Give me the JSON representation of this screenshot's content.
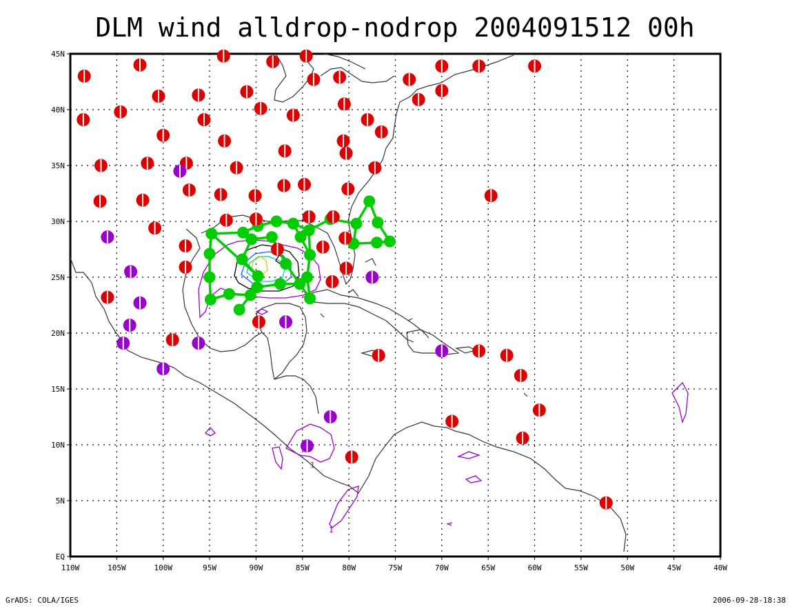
{
  "title": "DLM wind alldrop-nodrop 2004091512 00h",
  "footer": {
    "left": "GrADS: COLA/IGES",
    "right": "2006-09-28-18:38"
  },
  "colors": {
    "frame": "#000000",
    "coast": "#333333",
    "grid": "#000000",
    "track": "#00cc00",
    "obs_red": "#dd0000",
    "obs_purple": "#9900cc",
    "contour_purple": "#9900cc",
    "contour_blue": "#0066ff",
    "contour_cyan": "#00cccc",
    "contour_yellow": "#ddcc00",
    "contour_black": "#000000"
  },
  "chart_data": {
    "type": "map",
    "title": "DLM wind alldrop-nodrop 2004091512 00h",
    "lon_range": [
      -110,
      -40
    ],
    "lat_range": [
      0,
      45
    ],
    "x_ticks": [
      "110W",
      "105W",
      "100W",
      "95W",
      "90W",
      "85W",
      "80W",
      "75W",
      "70W",
      "65W",
      "60W",
      "55W",
      "50W",
      "45W",
      "40W"
    ],
    "y_ticks": [
      "EQ",
      "5N",
      "10N",
      "15N",
      "20N",
      "25N",
      "30N",
      "35N",
      "40N",
      "45N"
    ],
    "gridlines": true,
    "contour_label": "1",
    "observations_red": [
      [
        -108.5,
        43.0
      ],
      [
        -102.5,
        44.0
      ],
      [
        -93.5,
        44.8
      ],
      [
        -88.2,
        44.3
      ],
      [
        -84.6,
        44.8
      ],
      [
        -83.8,
        42.7
      ],
      [
        -81.0,
        42.9
      ],
      [
        -73.5,
        42.7
      ],
      [
        -70.0,
        43.9
      ],
      [
        -66.0,
        43.9
      ],
      [
        -60.0,
        43.9
      ],
      [
        -100.5,
        41.2
      ],
      [
        -96.2,
        41.3
      ],
      [
        -91.0,
        41.6
      ],
      [
        -80.5,
        40.5
      ],
      [
        -89.5,
        40.1
      ],
      [
        -72.5,
        40.9
      ],
      [
        -70.0,
        41.7
      ],
      [
        -108.6,
        39.1
      ],
      [
        -104.6,
        39.8
      ],
      [
        -95.6,
        39.1
      ],
      [
        -86.0,
        39.5
      ],
      [
        -78.0,
        39.1
      ],
      [
        -76.5,
        38.0
      ],
      [
        -100.0,
        37.7
      ],
      [
        -93.4,
        37.2
      ],
      [
        -80.6,
        37.2
      ],
      [
        -80.3,
        36.1
      ],
      [
        -86.9,
        36.3
      ],
      [
        -106.7,
        35.0
      ],
      [
        -101.7,
        35.2
      ],
      [
        -97.5,
        35.2
      ],
      [
        -92.1,
        34.8
      ],
      [
        -77.2,
        34.8
      ],
      [
        -97.2,
        32.8
      ],
      [
        -93.8,
        32.4
      ],
      [
        -90.1,
        32.3
      ],
      [
        -87.0,
        33.2
      ],
      [
        -84.8,
        33.3
      ],
      [
        -80.1,
        32.9
      ],
      [
        -64.7,
        32.3
      ],
      [
        -106.8,
        31.8
      ],
      [
        -102.2,
        31.9
      ],
      [
        -100.9,
        29.4
      ],
      [
        -93.2,
        30.1
      ],
      [
        -90.0,
        30.2
      ],
      [
        -84.3,
        30.4
      ],
      [
        -81.7,
        30.4
      ],
      [
        -80.4,
        28.5
      ],
      [
        -82.8,
        27.7
      ],
      [
        -97.6,
        27.8
      ],
      [
        -97.6,
        25.9
      ],
      [
        -87.7,
        27.5
      ],
      [
        -80.3,
        25.8
      ],
      [
        -81.8,
        24.6
      ],
      [
        -106.0,
        23.2
      ],
      [
        -89.7,
        21.0
      ],
      [
        -99.0,
        19.4
      ],
      [
        -76.8,
        18.0
      ],
      [
        -66.0,
        18.4
      ],
      [
        -63.0,
        18.0
      ],
      [
        -61.5,
        16.2
      ],
      [
        -59.5,
        13.1
      ],
      [
        -68.9,
        12.1
      ],
      [
        -61.3,
        10.6
      ],
      [
        -79.7,
        8.9
      ],
      [
        -52.3,
        4.8
      ]
    ],
    "observations_purple": [
      [
        -98.2,
        34.5
      ],
      [
        -106.0,
        28.6
      ],
      [
        -103.5,
        25.5
      ],
      [
        -102.5,
        22.7
      ],
      [
        -103.6,
        20.7
      ],
      [
        -104.3,
        19.1
      ],
      [
        -96.2,
        19.1
      ],
      [
        -100.0,
        16.8
      ],
      [
        -86.8,
        21.0
      ],
      [
        -77.5,
        25.0
      ],
      [
        -70.0,
        18.4
      ],
      [
        -82.0,
        12.5
      ],
      [
        -84.5,
        9.9
      ]
    ],
    "track_points": [
      [
        -77.8,
        31.8
      ],
      [
        -76.9,
        29.9
      ],
      [
        -75.6,
        28.2
      ],
      [
        -77.0,
        28.1
      ],
      [
        -79.5,
        28.0
      ],
      [
        -79.2,
        29.8
      ],
      [
        -82.0,
        30.2
      ],
      [
        -84.3,
        29.2
      ],
      [
        -86.0,
        29.8
      ],
      [
        -87.8,
        30.0
      ],
      [
        -89.8,
        29.6
      ],
      [
        -91.4,
        29.0
      ],
      [
        -94.8,
        28.9
      ],
      [
        -95.0,
        27.1
      ],
      [
        -95.0,
        25.0
      ],
      [
        -94.9,
        23.0
      ],
      [
        -92.9,
        23.5
      ],
      [
        -90.6,
        23.4
      ],
      [
        -91.8,
        22.1
      ],
      [
        -89.9,
        24.1
      ],
      [
        -87.4,
        24.4
      ],
      [
        -85.3,
        24.4
      ],
      [
        -84.2,
        23.1
      ],
      [
        -84.5,
        25.0
      ],
      [
        -84.2,
        27.0
      ],
      [
        -85.2,
        28.6
      ],
      [
        -89.8,
        25.1
      ],
      [
        -91.5,
        26.6
      ],
      [
        -90.5,
        28.4
      ],
      [
        -88.3,
        28.6
      ],
      [
        -86.8,
        26.2
      ]
    ],
    "track_segments": [
      [
        0,
        1
      ],
      [
        1,
        2
      ],
      [
        2,
        3
      ],
      [
        3,
        4
      ],
      [
        4,
        5
      ],
      [
        5,
        6
      ],
      [
        6,
        7
      ],
      [
        7,
        8
      ],
      [
        8,
        9
      ],
      [
        9,
        10
      ],
      [
        10,
        11
      ],
      [
        11,
        12
      ],
      [
        12,
        13
      ],
      [
        13,
        14
      ],
      [
        14,
        15
      ],
      [
        15,
        16
      ],
      [
        16,
        17
      ],
      [
        17,
        18
      ],
      [
        17,
        19
      ],
      [
        19,
        20
      ],
      [
        20,
        21
      ],
      [
        21,
        22
      ],
      [
        22,
        23
      ],
      [
        23,
        24
      ],
      [
        24,
        25
      ],
      [
        25,
        8
      ],
      [
        12,
        26
      ],
      [
        26,
        27
      ],
      [
        27,
        28
      ],
      [
        28,
        29
      ],
      [
        29,
        30
      ],
      [
        30,
        21
      ],
      [
        7,
        24
      ],
      [
        0,
        5
      ],
      [
        3,
        2
      ]
    ]
  }
}
